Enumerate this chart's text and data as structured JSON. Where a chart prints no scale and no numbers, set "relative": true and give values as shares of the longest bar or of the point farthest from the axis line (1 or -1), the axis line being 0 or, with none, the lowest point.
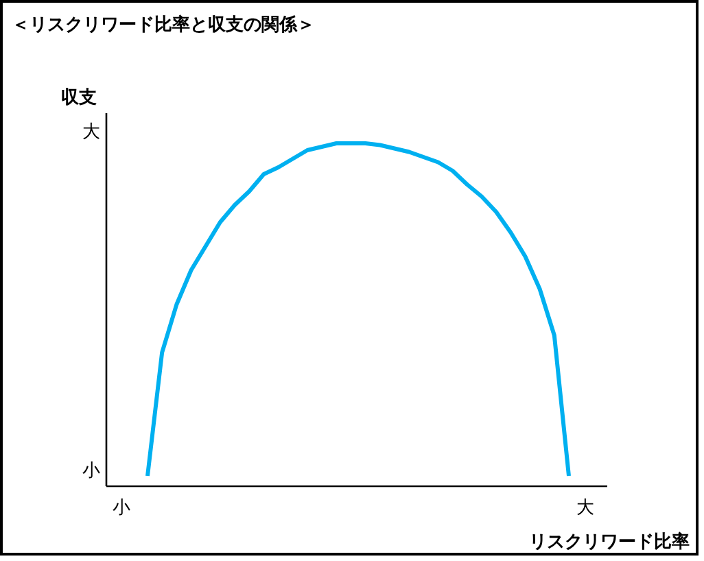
{
  "chart_data": {
    "type": "line",
    "title": "＜リスクリワード比率と収支の関係＞",
    "xlabel": "リスクリワード比率",
    "ylabel": "収支",
    "relative": true,
    "grid": false,
    "marker": "none",
    "line_style": "solid",
    "categories": [
      null,
      null,
      null,
      null,
      null,
      null,
      null,
      null,
      null,
      null,
      null,
      null,
      null,
      null,
      null,
      null,
      null,
      null,
      null,
      null,
      null,
      null,
      null,
      null,
      null,
      null,
      null,
      null,
      null,
      null
    ],
    "series": [
      {
        "color": "#00b0f0",
        "values": [
          0.03,
          0.39,
          0.53,
          0.63,
          0.7,
          0.77,
          0.82,
          0.86,
          0.91,
          0.93,
          0.955,
          0.98,
          0.99,
          1.0,
          1.0,
          1.0,
          0.995,
          0.985,
          0.975,
          0.96,
          0.945,
          0.92,
          0.88,
          0.845,
          0.8,
          0.74,
          0.67,
          0.575,
          0.44,
          0.03
        ]
      }
    ],
    "annotations": [
      "小",
      "大",
      "小",
      "大"
    ]
  }
}
